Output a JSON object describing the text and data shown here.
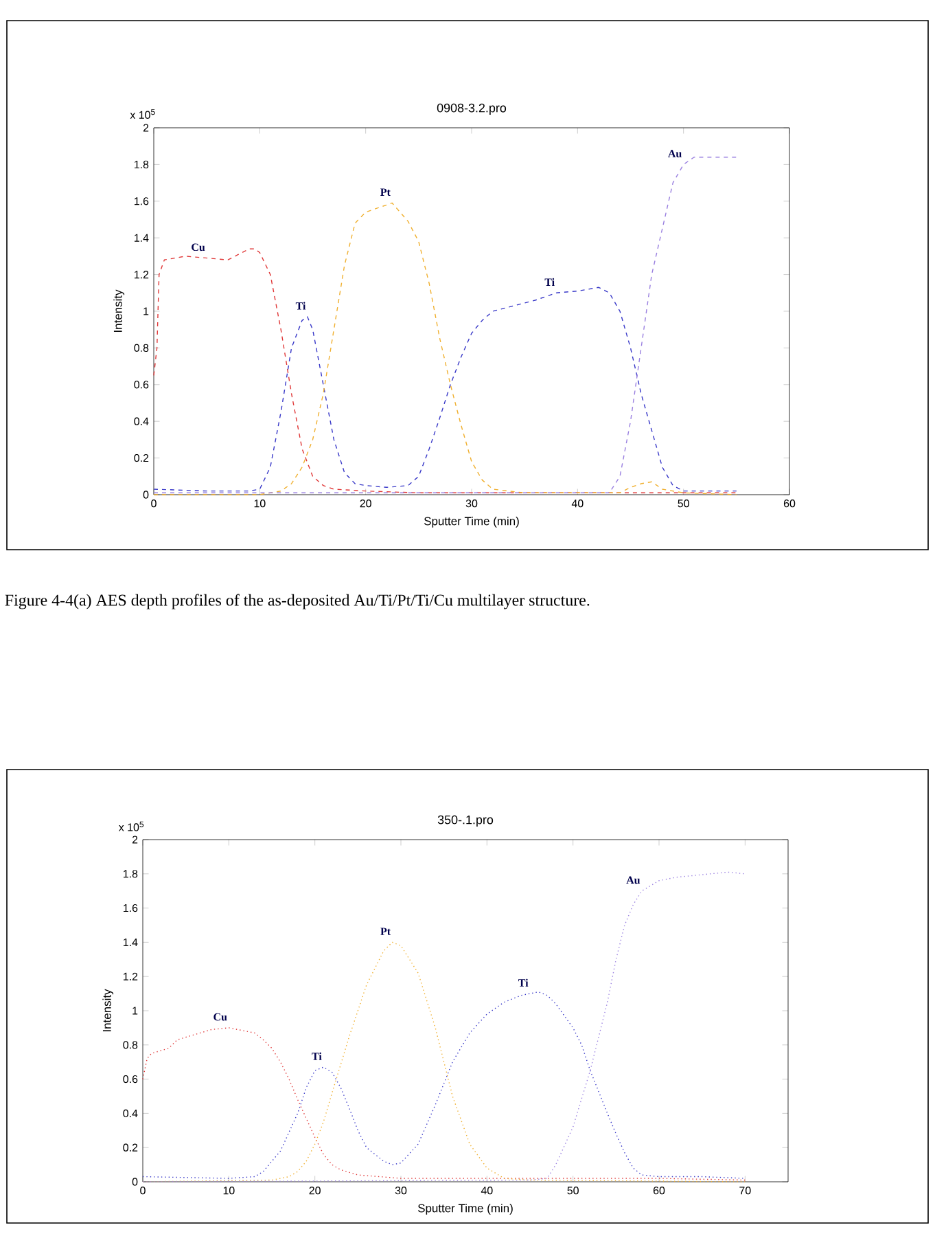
{
  "chart_data": [
    {
      "type": "line",
      "title": "0908-3.2.pro",
      "xlabel": "Sputter Time (min)",
      "ylabel": "Intensity",
      "xlim": [
        0,
        60
      ],
      "ylim": [
        0,
        2
      ],
      "xticks": [
        0,
        10,
        20,
        30,
        40,
        50,
        60
      ],
      "yticks": [
        0,
        0.2,
        0.4,
        0.6,
        0.8,
        1,
        1.2,
        1.4,
        1.6,
        1.8,
        2
      ],
      "grid": false,
      "marker": "none",
      "line_style": "dashed",
      "annotations": [
        "x 10$^{5}$",
        "Figure 4-4(a) AES depth profiles of the as-deposited Au/Ti/Pt/Ti/Cu multilayer structure.",
        {
          "text": "Cu",
          "x": 5,
          "y": 1.29
        },
        {
          "text": "Ti",
          "x": 14.5,
          "y": 0.97
        },
        {
          "text": "Pt",
          "x": 22.5,
          "y": 1.59
        },
        {
          "text": "Ti",
          "x": 38,
          "y": 1.1
        },
        {
          "text": "Au",
          "x": 50,
          "y": 1.8
        }
      ],
      "series": [
        {
          "color": "#e03838",
          "x": [
            0,
            0.3,
            0.5,
            1,
            2,
            3,
            5,
            7,
            8,
            9,
            9.5,
            10,
            11,
            12,
            13,
            14,
            15,
            16,
            17,
            20,
            25,
            30,
            40,
            50,
            55
          ],
          "values": [
            0.65,
            0.8,
            1.2,
            1.28,
            1.29,
            1.3,
            1.29,
            1.28,
            1.31,
            1.34,
            1.34,
            1.32,
            1.2,
            0.9,
            0.55,
            0.25,
            0.1,
            0.05,
            0.03,
            0.02,
            0.01,
            0.01,
            0.01,
            0.01,
            0.01
          ]
        },
        {
          "color": "#3838c8",
          "x": [
            0,
            5,
            9,
            10,
            11,
            12,
            13,
            14,
            14.5,
            15,
            16,
            17,
            18,
            19,
            20,
            22,
            24,
            25,
            26,
            27,
            28,
            29,
            30,
            31,
            32,
            34,
            36,
            38,
            40,
            42,
            43,
            44,
            45,
            46,
            47,
            48,
            49,
            50,
            52,
            55
          ],
          "values": [
            0.03,
            0.02,
            0.02,
            0.03,
            0.15,
            0.45,
            0.8,
            0.95,
            0.97,
            0.9,
            0.6,
            0.3,
            0.12,
            0.06,
            0.05,
            0.04,
            0.05,
            0.1,
            0.25,
            0.42,
            0.6,
            0.75,
            0.88,
            0.95,
            1.0,
            1.03,
            1.06,
            1.1,
            1.11,
            1.13,
            1.1,
            1.0,
            0.8,
            0.55,
            0.35,
            0.15,
            0.05,
            0.02,
            0.02,
            0.02
          ]
        },
        {
          "color": "#f0b030",
          "x": [
            0,
            10,
            12,
            13,
            14,
            15,
            16,
            17,
            18,
            19,
            20,
            22,
            22.5,
            24,
            25,
            26,
            27,
            28,
            29,
            30,
            31,
            32,
            35,
            44,
            45,
            46,
            47,
            48,
            50,
            55
          ],
          "values": [
            0,
            0,
            0.02,
            0.06,
            0.15,
            0.3,
            0.55,
            0.9,
            1.25,
            1.48,
            1.54,
            1.58,
            1.59,
            1.49,
            1.38,
            1.15,
            0.85,
            0.6,
            0.38,
            0.18,
            0.08,
            0.03,
            0.01,
            0.01,
            0.04,
            0.06,
            0.07,
            0.03,
            0.01,
            0
          ]
        },
        {
          "color": "#9a80e0",
          "x": [
            0,
            40,
            43,
            44,
            45,
            46,
            47,
            48,
            49,
            50,
            51,
            53,
            55
          ],
          "values": [
            0.01,
            0.01,
            0.01,
            0.1,
            0.4,
            0.8,
            1.2,
            1.45,
            1.7,
            1.8,
            1.84,
            1.84,
            1.84
          ]
        }
      ]
    },
    {
      "type": "line",
      "title": "350-.1.pro",
      "xlabel": "Sputter Time (min)",
      "ylabel": "Intensity",
      "xlim": [
        0,
        75
      ],
      "ylim": [
        0,
        2
      ],
      "xticks": [
        0,
        10,
        20,
        30,
        40,
        50,
        60,
        70
      ],
      "yticks": [
        0,
        0.2,
        0.4,
        0.6,
        0.8,
        1,
        1.2,
        1.4,
        1.6,
        1.8,
        2
      ],
      "grid": false,
      "marker": "none",
      "line_style": "dotted",
      "annotations": [
        "x 10$^{5}$",
        {
          "text": "Cu",
          "x": 10,
          "y": 0.9
        },
        {
          "text": "Ti",
          "x": 21,
          "y": 0.67
        },
        {
          "text": "Pt",
          "x": 29,
          "y": 1.4
        },
        {
          "text": "Ti",
          "x": 45,
          "y": 1.1
        },
        {
          "text": "Au",
          "x": 58,
          "y": 1.7
        }
      ],
      "series": [
        {
          "color": "#e03838",
          "x": [
            0,
            0.5,
            1,
            3,
            4,
            6,
            8,
            10,
            12,
            13,
            14,
            15,
            16,
            17,
            18,
            19,
            20,
            21,
            22,
            23,
            25,
            30,
            40,
            50,
            60,
            70
          ],
          "values": [
            0.6,
            0.72,
            0.75,
            0.78,
            0.83,
            0.86,
            0.89,
            0.9,
            0.88,
            0.87,
            0.83,
            0.78,
            0.7,
            0.6,
            0.48,
            0.37,
            0.26,
            0.16,
            0.1,
            0.07,
            0.04,
            0.02,
            0.02,
            0.02,
            0.02,
            0.01
          ]
        },
        {
          "color": "#3838c8",
          "x": [
            0,
            10,
            13,
            14,
            16,
            18,
            19,
            20,
            21,
            22,
            23,
            24,
            25,
            26,
            28,
            29,
            30,
            32,
            34,
            36,
            38,
            40,
            42,
            44,
            45,
            46,
            47,
            48,
            50,
            51,
            52,
            54,
            55,
            56,
            57,
            58,
            60,
            65,
            70
          ],
          "values": [
            0.03,
            0.02,
            0.03,
            0.06,
            0.18,
            0.4,
            0.55,
            0.65,
            0.67,
            0.64,
            0.55,
            0.43,
            0.3,
            0.2,
            0.12,
            0.1,
            0.11,
            0.22,
            0.45,
            0.7,
            0.87,
            0.98,
            1.05,
            1.09,
            1.1,
            1.11,
            1.09,
            1.04,
            0.9,
            0.8,
            0.65,
            0.4,
            0.28,
            0.17,
            0.08,
            0.04,
            0.03,
            0.03,
            0.02
          ]
        },
        {
          "color": "#f0b030",
          "x": [
            0,
            15,
            17,
            18,
            19,
            20,
            21,
            22,
            24,
            26,
            28,
            29,
            30,
            32,
            34,
            36,
            38,
            40,
            42,
            45,
            70
          ],
          "values": [
            0,
            0.01,
            0.03,
            0.06,
            0.12,
            0.22,
            0.35,
            0.52,
            0.85,
            1.15,
            1.35,
            1.4,
            1.38,
            1.22,
            0.9,
            0.5,
            0.22,
            0.08,
            0.02,
            0.01,
            0
          ]
        },
        {
          "color": "#9a80e0",
          "x": [
            0,
            45,
            47,
            48,
            50,
            52,
            54,
            55,
            56,
            57,
            58,
            60,
            62,
            64,
            66,
            68,
            70
          ],
          "values": [
            0,
            0.01,
            0.02,
            0.1,
            0.32,
            0.65,
            1.05,
            1.3,
            1.5,
            1.62,
            1.7,
            1.76,
            1.78,
            1.79,
            1.8,
            1.81,
            1.8
          ]
        }
      ]
    }
  ]
}
